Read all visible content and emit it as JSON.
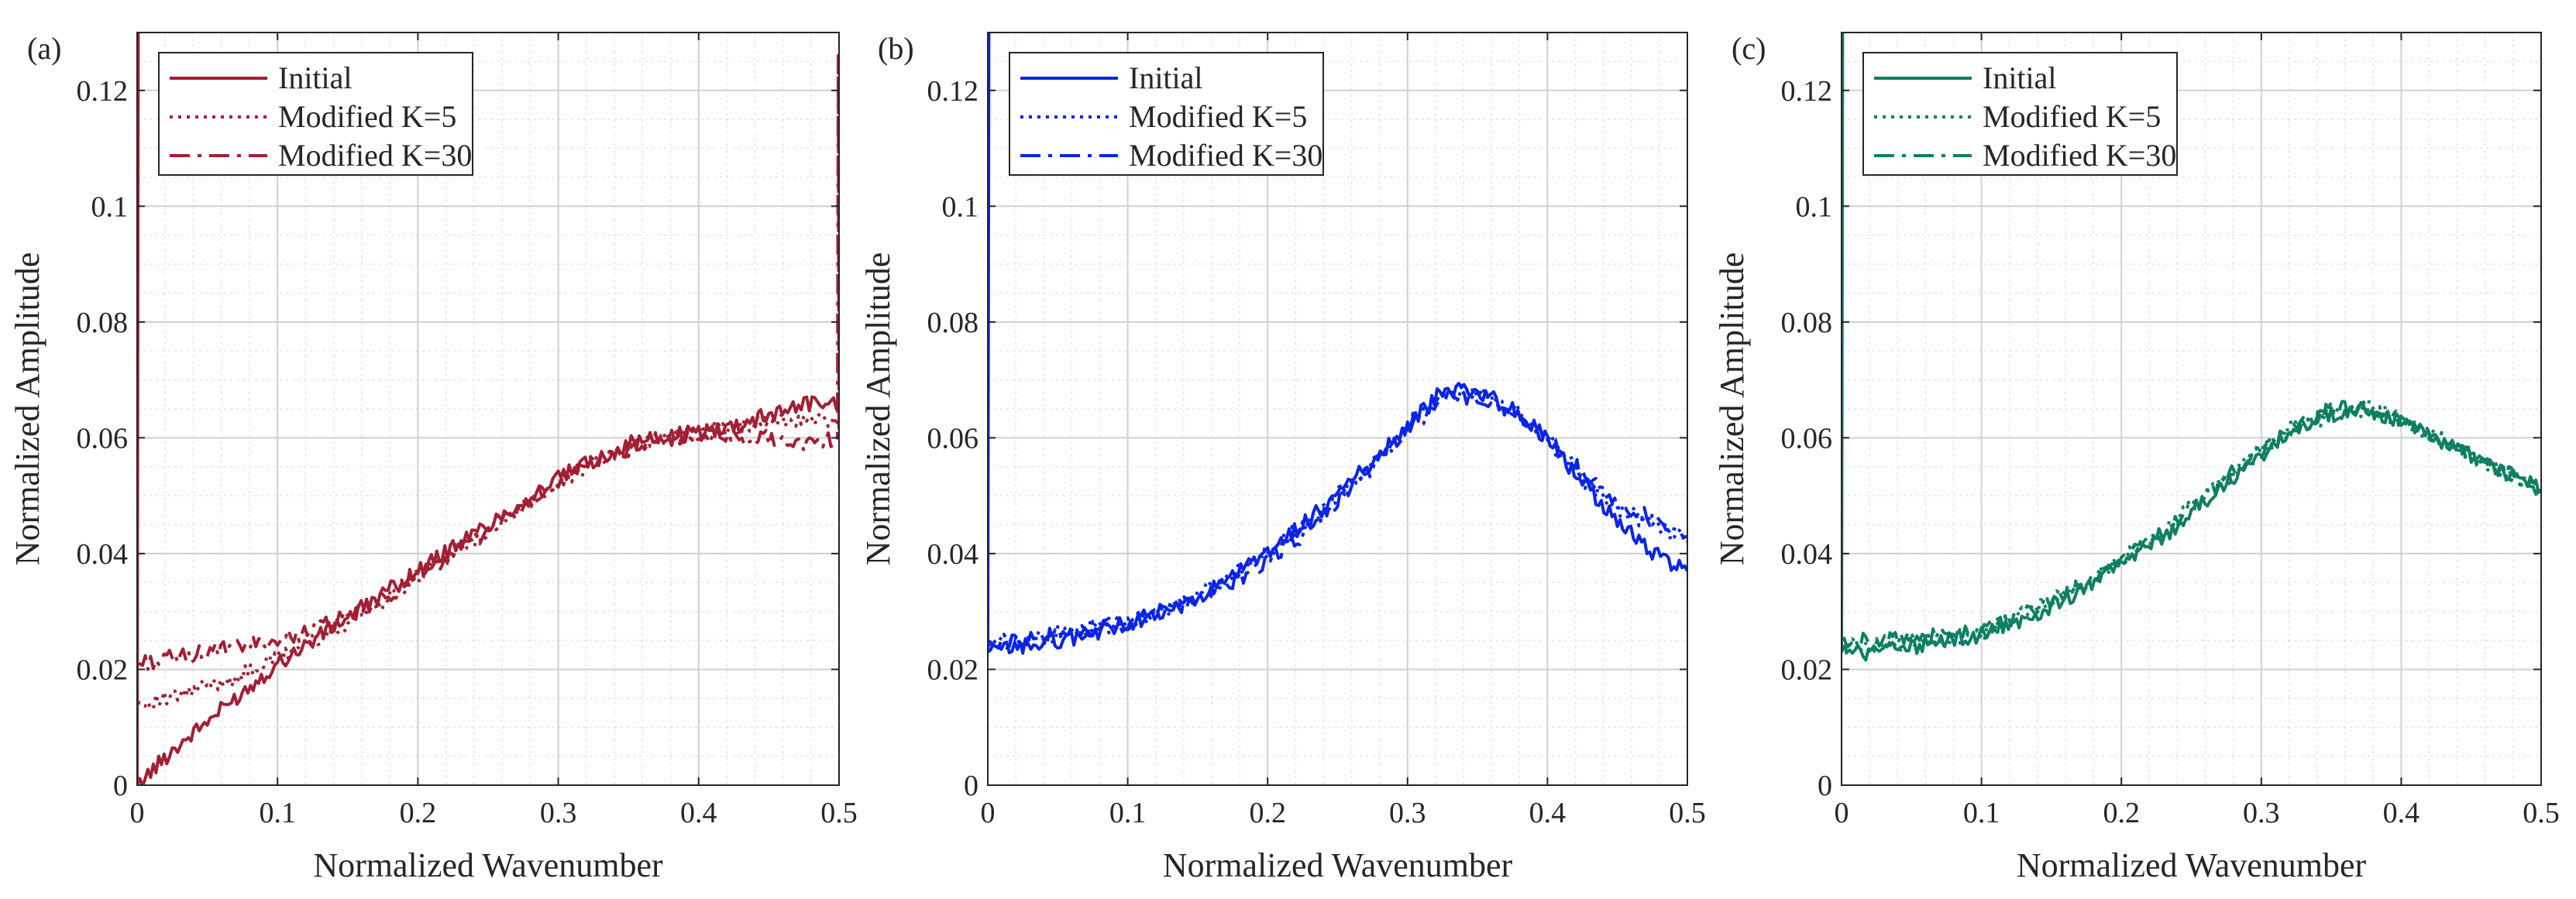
{
  "chart_data": [
    {
      "type": "line",
      "panel_label": "(a)",
      "color": "#A31F34",
      "xlabel": "Normalized Wavenumber",
      "ylabel": "Normalized Amplitude",
      "xlim": [
        0,
        0.5
      ],
      "ylim": [
        0,
        0.13
      ],
      "xticks": [
        0,
        0.1,
        0.2,
        0.3,
        0.4,
        0.5
      ],
      "xtick_labels": [
        "0",
        "0.1",
        "0.2",
        "0.3",
        "0.4",
        "0.5"
      ],
      "yticks": [
        0,
        0.02,
        0.04,
        0.06,
        0.08,
        0.1,
        0.12
      ],
      "ytick_labels": [
        "0",
        "0.02",
        "0.04",
        "0.06",
        "0.08",
        "0.1",
        "0.12"
      ],
      "grid": true,
      "legend_position": "top-left",
      "x": [
        0,
        0.025,
        0.05,
        0.075,
        0.1,
        0.125,
        0.15,
        0.175,
        0.2,
        0.225,
        0.25,
        0.275,
        0.3,
        0.325,
        0.35,
        0.375,
        0.4,
        0.425,
        0.45,
        0.475,
        0.5
      ],
      "series": [
        {
          "name": "Initial",
          "style": "solid",
          "spike_at_x0": true,
          "values": [
            0.0,
            0.006,
            0.011,
            0.016,
            0.021,
            0.025,
            0.029,
            0.033,
            0.037,
            0.041,
            0.045,
            0.049,
            0.053,
            0.056,
            0.059,
            0.06,
            0.061,
            0.062,
            0.064,
            0.066,
            0.066
          ]
        },
        {
          "name": "Modified K=5",
          "style": "dotted",
          "values": [
            0.014,
            0.015,
            0.017,
            0.019,
            0.022,
            0.025,
            0.028,
            0.032,
            0.036,
            0.04,
            0.044,
            0.048,
            0.052,
            0.056,
            0.058,
            0.06,
            0.061,
            0.062,
            0.063,
            0.063,
            0.063
          ]
        },
        {
          "name": "Modified K=30",
          "style": "dashdot",
          "spike_at_x_end": 0.126,
          "values": [
            0.021,
            0.022,
            0.023,
            0.024,
            0.025,
            0.027,
            0.029,
            0.032,
            0.036,
            0.04,
            0.044,
            0.048,
            0.052,
            0.056,
            0.058,
            0.06,
            0.06,
            0.06,
            0.06,
            0.059,
            0.06
          ]
        }
      ]
    },
    {
      "type": "line",
      "panel_label": "(b)",
      "color": "#0B24E8",
      "xlabel": "Normalized Wavenumber",
      "ylabel": "Normalized Amplitude",
      "xlim": [
        0,
        0.5
      ],
      "ylim": [
        0,
        0.13
      ],
      "xticks": [
        0,
        0.1,
        0.2,
        0.3,
        0.4,
        0.5
      ],
      "xtick_labels": [
        "0",
        "0.1",
        "0.2",
        "0.3",
        "0.4",
        "0.5"
      ],
      "yticks": [
        0,
        0.02,
        0.04,
        0.06,
        0.08,
        0.1,
        0.12
      ],
      "ytick_labels": [
        "0",
        "0.02",
        "0.04",
        "0.06",
        "0.08",
        "0.1",
        "0.12"
      ],
      "grid": true,
      "legend_position": "top-left",
      "x": [
        0,
        0.025,
        0.05,
        0.075,
        0.1,
        0.125,
        0.15,
        0.175,
        0.2,
        0.225,
        0.25,
        0.275,
        0.3,
        0.325,
        0.35,
        0.375,
        0.4,
        0.425,
        0.45,
        0.475,
        0.5
      ],
      "series": [
        {
          "name": "Initial",
          "style": "solid",
          "spike_at_x0": true,
          "values": [
            0.023,
            0.024,
            0.025,
            0.026,
            0.028,
            0.03,
            0.032,
            0.036,
            0.04,
            0.045,
            0.05,
            0.056,
            0.062,
            0.068,
            0.068,
            0.065,
            0.06,
            0.052,
            0.046,
            0.04,
            0.037
          ]
        },
        {
          "name": "Modified K=5",
          "style": "dotted",
          "values": [
            0.024,
            0.025,
            0.026,
            0.027,
            0.028,
            0.03,
            0.033,
            0.036,
            0.04,
            0.045,
            0.05,
            0.056,
            0.062,
            0.068,
            0.068,
            0.065,
            0.06,
            0.053,
            0.048,
            0.045,
            0.042
          ]
        },
        {
          "name": "Modified K=30",
          "style": "dashdot",
          "values": [
            0.025,
            0.025,
            0.026,
            0.027,
            0.028,
            0.03,
            0.032,
            0.035,
            0.039,
            0.043,
            0.049,
            0.055,
            0.061,
            0.067,
            0.067,
            0.064,
            0.06,
            0.054,
            0.049,
            0.046,
            0.043
          ]
        }
      ]
    },
    {
      "type": "line",
      "panel_label": "(c)",
      "color": "#0E7F63",
      "xlabel": "Normalized Wavenumber",
      "ylabel": "Normalized Amplitude",
      "xlim": [
        0,
        0.5
      ],
      "ylim": [
        0,
        0.13
      ],
      "xticks": [
        0,
        0.1,
        0.2,
        0.3,
        0.4,
        0.5
      ],
      "xtick_labels": [
        "0",
        "0.1",
        "0.2",
        "0.3",
        "0.4",
        "0.5"
      ],
      "yticks": [
        0,
        0.02,
        0.04,
        0.06,
        0.08,
        0.1,
        0.12
      ],
      "ytick_labels": [
        "0",
        "0.02",
        "0.04",
        "0.06",
        "0.08",
        "0.1",
        "0.12"
      ],
      "grid": true,
      "legend_position": "top-left",
      "x": [
        0,
        0.025,
        0.05,
        0.075,
        0.1,
        0.125,
        0.15,
        0.175,
        0.2,
        0.225,
        0.25,
        0.275,
        0.3,
        0.325,
        0.35,
        0.375,
        0.4,
        0.425,
        0.45,
        0.475,
        0.5
      ],
      "series": [
        {
          "name": "Initial",
          "style": "solid",
          "spike_at_x0": true,
          "values": [
            0.023,
            0.023,
            0.024,
            0.025,
            0.026,
            0.028,
            0.031,
            0.034,
            0.038,
            0.042,
            0.047,
            0.052,
            0.057,
            0.062,
            0.064,
            0.065,
            0.063,
            0.06,
            0.057,
            0.054,
            0.051
          ]
        },
        {
          "name": "Modified K=5",
          "style": "dotted",
          "values": [
            0.024,
            0.024,
            0.025,
            0.025,
            0.026,
            0.029,
            0.032,
            0.035,
            0.039,
            0.043,
            0.048,
            0.053,
            0.058,
            0.062,
            0.064,
            0.065,
            0.063,
            0.06,
            0.057,
            0.054,
            0.051
          ]
        },
        {
          "name": "Modified K=30",
          "style": "dashdot",
          "values": [
            0.025,
            0.025,
            0.025,
            0.026,
            0.027,
            0.029,
            0.032,
            0.035,
            0.039,
            0.043,
            0.048,
            0.053,
            0.058,
            0.062,
            0.065,
            0.065,
            0.063,
            0.06,
            0.057,
            0.054,
            0.051
          ]
        }
      ]
    }
  ]
}
